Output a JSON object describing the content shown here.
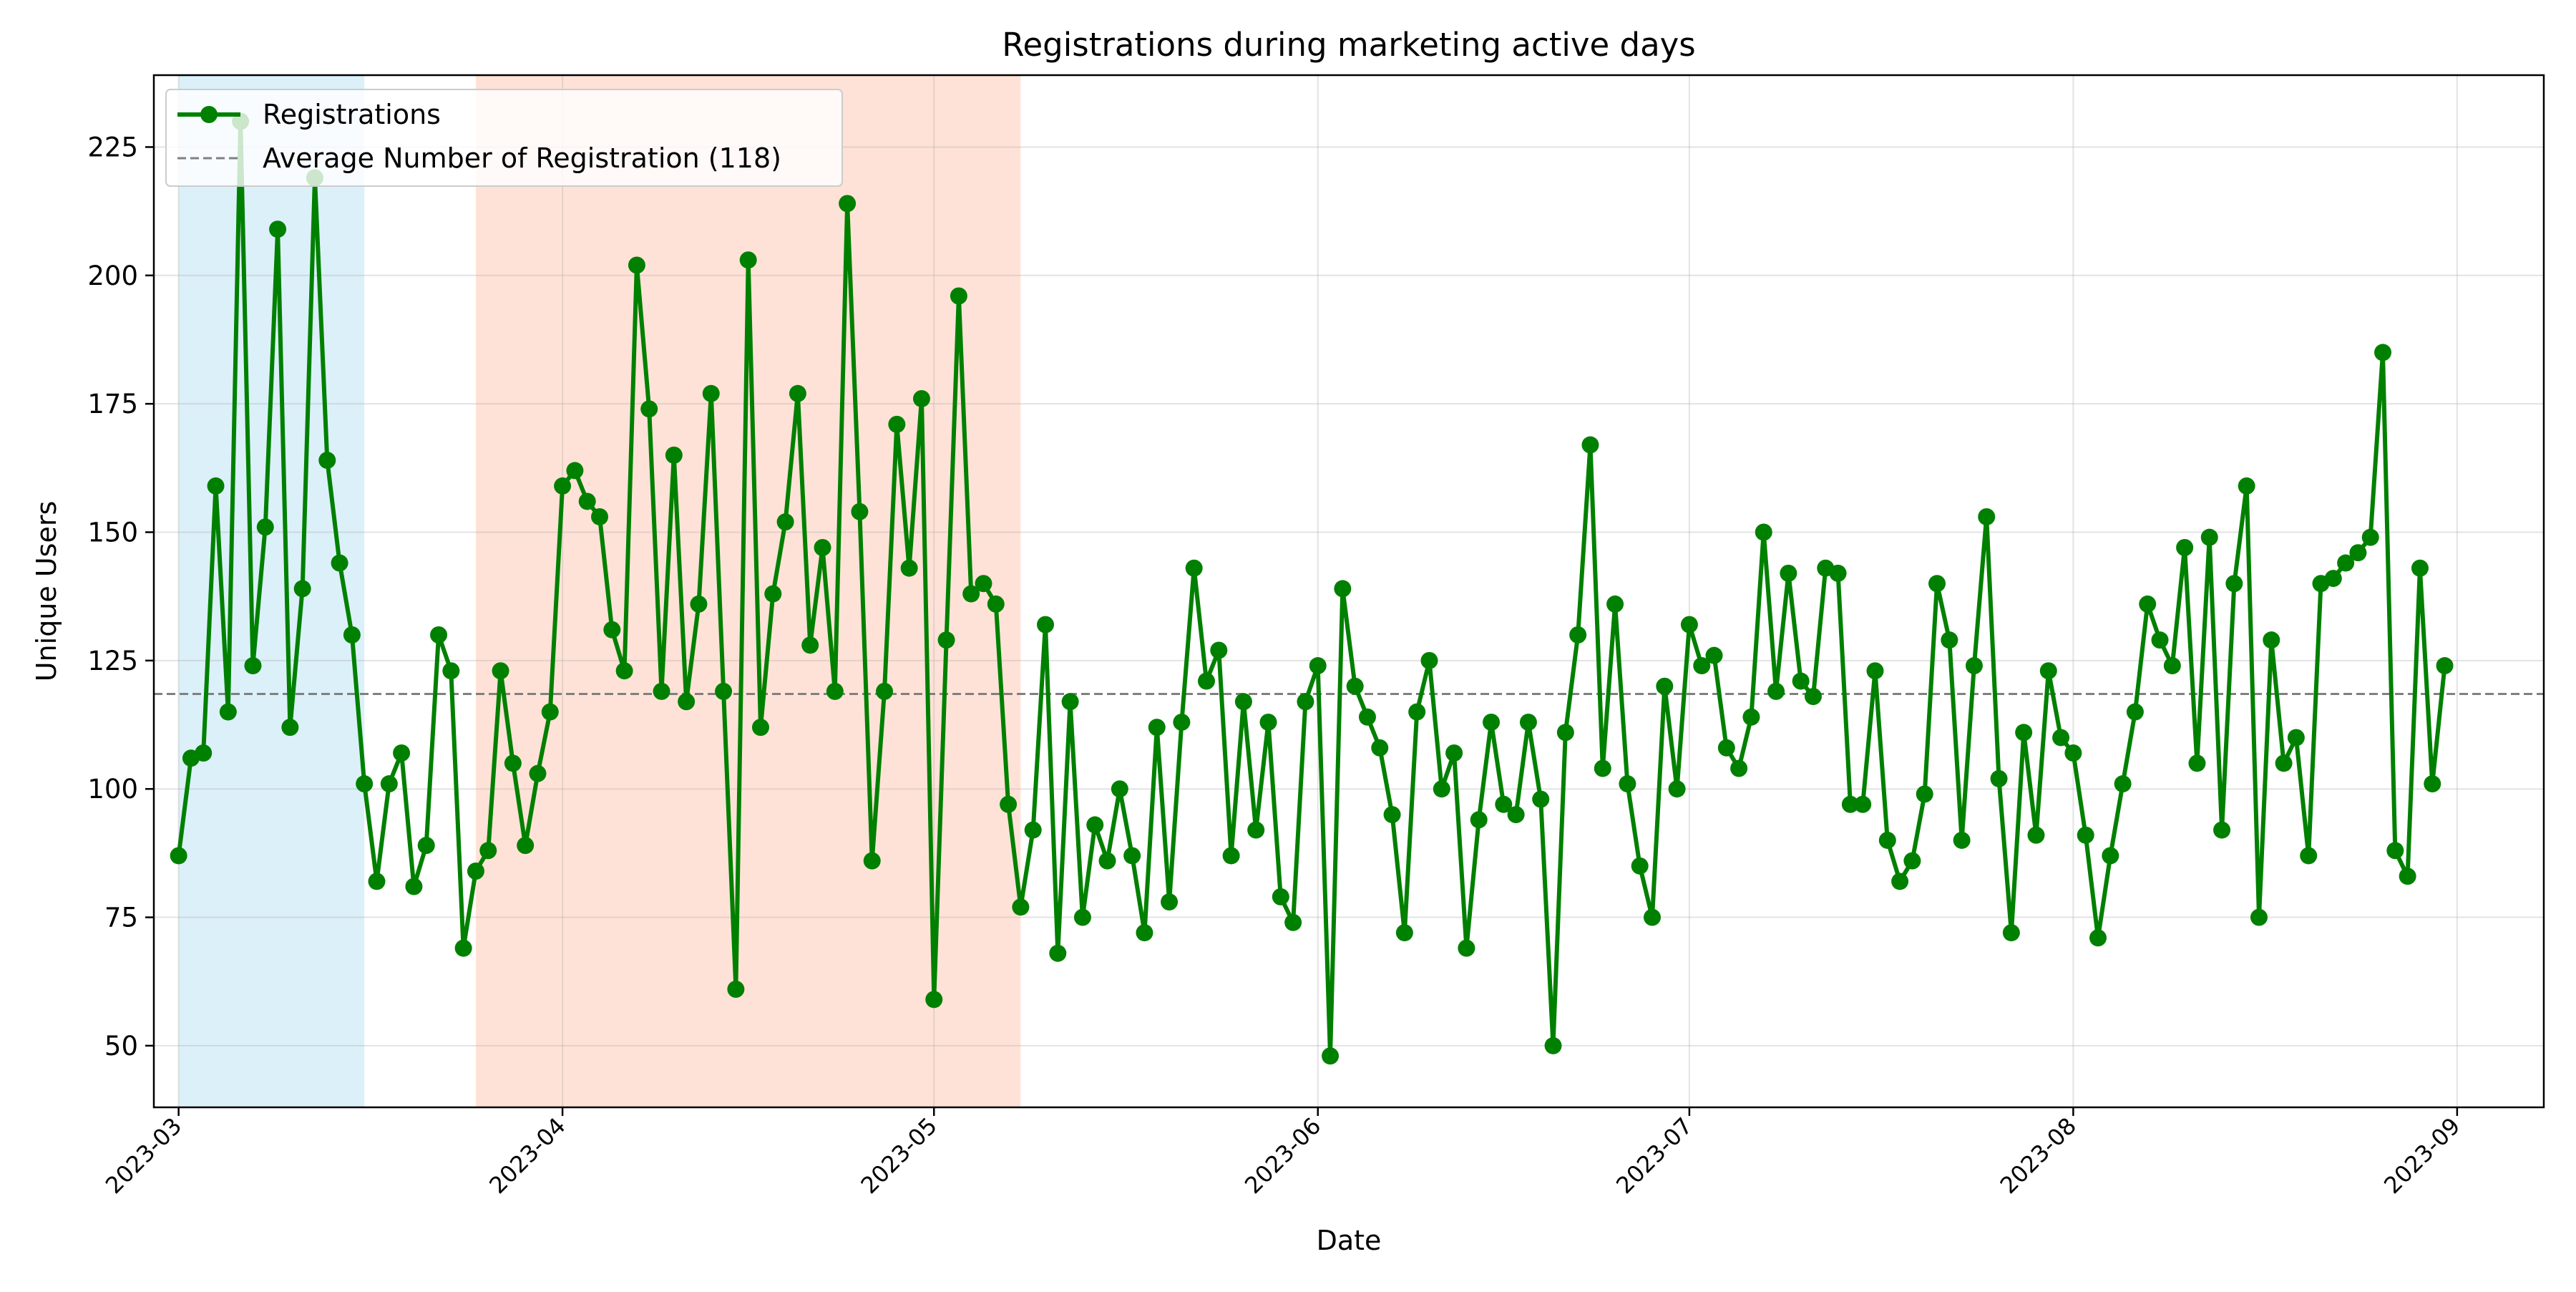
{
  "chart_data": {
    "type": "line",
    "title": "Registrations during marketing active days",
    "xlabel": "Date",
    "ylabel": "Unique Users",
    "x_start": "2023-03-01",
    "x_end": "2023-08-31",
    "xlim": [
      "2022-02-27",
      "2023-09-08"
    ],
    "ylim": [
      38,
      239
    ],
    "xticks": [
      "2023-03-01",
      "2023-04-01",
      "2023-05-01",
      "2023-06-01",
      "2023-07-01",
      "2023-08-01",
      "2023-09-01"
    ],
    "xtick_labels": [
      "2023-03",
      "2023-04",
      "2023-05",
      "2023-06",
      "2023-07",
      "2023-08",
      "2023-09"
    ],
    "yticks": [
      50,
      75,
      100,
      125,
      150,
      175,
      200,
      225
    ],
    "ytick_labels": [
      "50",
      "75",
      "100",
      "125",
      "150",
      "175",
      "200",
      "225"
    ],
    "grid": true,
    "legend_position": "top-left",
    "series": [
      {
        "name": "Registrations",
        "color": "#008000",
        "marker": "circle",
        "values": [
          87,
          106,
          107,
          159,
          115,
          230,
          124,
          151,
          209,
          112,
          139,
          219,
          164,
          144,
          130,
          101,
          82,
          101,
          107,
          81,
          89,
          130,
          123,
          69,
          84,
          88,
          123,
          105,
          89,
          103,
          115,
          159,
          162,
          156,
          153,
          131,
          123,
          202,
          174,
          119,
          165,
          117,
          136,
          177,
          119,
          61,
          203,
          112,
          138,
          152,
          177,
          128,
          147,
          119,
          214,
          154,
          86,
          119,
          171,
          143,
          176,
          59,
          129,
          196,
          138,
          140,
          136,
          97,
          77,
          92,
          132,
          68,
          117,
          75,
          93,
          86,
          100,
          87,
          72,
          112,
          78,
          113,
          143,
          121,
          127,
          87,
          117,
          92,
          113,
          79,
          74,
          117,
          124,
          48,
          139,
          120,
          114,
          108,
          95,
          72,
          115,
          125,
          100,
          107,
          69,
          94,
          113,
          97,
          95,
          113,
          98,
          50,
          111,
          130,
          167,
          104,
          136,
          101,
          85,
          75,
          120,
          100,
          132,
          124,
          126,
          108,
          104,
          114,
          150,
          119,
          142,
          121,
          118,
          143,
          142,
          97,
          97,
          123,
          90,
          82,
          86,
          99,
          140,
          129,
          90,
          124,
          153,
          102,
          72,
          111,
          91,
          123,
          110,
          107,
          91,
          71,
          87,
          101,
          115,
          136,
          129,
          124,
          147,
          105,
          149,
          92,
          140,
          159,
          75,
          129,
          105,
          110,
          87,
          140,
          141,
          144,
          146,
          149,
          185,
          88,
          83,
          143,
          101,
          124
        ]
      }
    ],
    "reference_line": {
      "name": "Average Number of Registration (118)",
      "value": 118.5,
      "color": "#808080",
      "style": "dashed"
    },
    "highlighted_ranges": [
      {
        "start": "2023-03-01",
        "end": "2023-03-16",
        "color": "#87CEEB"
      },
      {
        "start": "2023-03-25",
        "end": "2023-05-08",
        "color": "#FFA07A"
      }
    ]
  }
}
